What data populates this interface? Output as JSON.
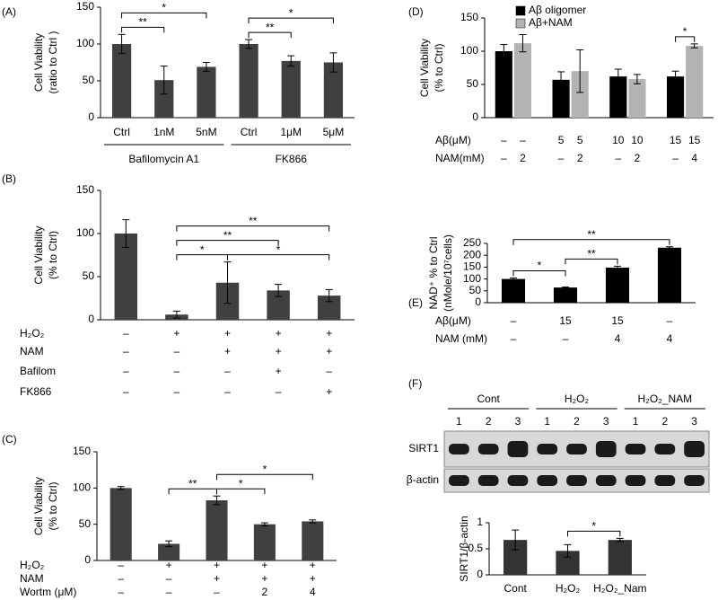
{
  "chart_data": [
    {
      "type": "bar",
      "label": "(A)",
      "ylabel": [
        "Cell Viability",
        "(ratio to Ctrl )"
      ],
      "categories": [
        "Ctrl",
        "1nM",
        "5nM",
        "Ctrl",
        "1μM",
        "5μM"
      ],
      "values": [
        100,
        51,
        69,
        100,
        77,
        75
      ],
      "errors": [
        13,
        19,
        6,
        6,
        7,
        13
      ],
      "color": "#404040",
      "ylim": [
        0,
        150
      ],
      "yticks": [
        0,
        50,
        100,
        150
      ],
      "groups": [
        {
          "label": "Bafilomycin A1",
          "from": 0,
          "to": 2
        },
        {
          "label": "FK866",
          "from": 3,
          "to": 5
        }
      ],
      "annotations": [
        {
          "text": "**",
          "from": 0,
          "to": 1
        },
        {
          "text": "*",
          "from": 0,
          "to": 2
        },
        {
          "text": "**",
          "from": 3,
          "to": 4
        },
        {
          "text": "*",
          "from": 3,
          "to": 5
        }
      ]
    },
    {
      "type": "bar",
      "label": "(B)",
      "ylabel": [
        "Cell Viability",
        "(% to Ctrl)"
      ],
      "values": [
        100,
        6,
        43,
        34,
        28
      ],
      "errors": [
        16,
        4,
        24,
        7,
        7
      ],
      "color": "#404040",
      "ylim": [
        0,
        150
      ],
      "yticks": [
        0,
        50,
        100,
        150
      ],
      "conditions": [
        {
          "label": "H₂O₂",
          "values": [
            "–",
            "+",
            "+",
            "+",
            "+"
          ]
        },
        {
          "label": "NAM",
          "values": [
            "–",
            "–",
            "+",
            "+",
            "+"
          ]
        },
        {
          "label": "Bafilom",
          "values": [
            "–",
            "–",
            "–",
            "+",
            "–"
          ]
        },
        {
          "label": "FK866",
          "values": [
            "–",
            "–",
            "–",
            "–",
            "+"
          ]
        }
      ],
      "annotations": [
        {
          "text": "*",
          "from": 1,
          "to": 2
        },
        {
          "text": "*",
          "from": 2,
          "to": 4
        },
        {
          "text": "**",
          "from": 1,
          "to": 3
        },
        {
          "text": "**",
          "from": 1,
          "to": 4
        }
      ]
    },
    {
      "type": "bar",
      "label": "(C)",
      "ylabel": [
        "Cell Viability",
        "(% to Ctrl)"
      ],
      "values": [
        100,
        23,
        83,
        50,
        54
      ],
      "errors": [
        2,
        4,
        6,
        2,
        2
      ],
      "color": "#404040",
      "ylim": [
        0,
        150
      ],
      "yticks": [
        0,
        50,
        100,
        150
      ],
      "conditions": [
        {
          "label": "H₂O₂",
          "values": [
            "–",
            "+",
            "+",
            "+",
            "+"
          ]
        },
        {
          "label": "NAM",
          "values": [
            "–",
            "–",
            "+",
            "+",
            "+"
          ]
        },
        {
          "label": "Wortm (μM)",
          "values": [
            "–",
            "–",
            "–",
            "2",
            "4"
          ]
        }
      ],
      "annotations": [
        {
          "text": "**",
          "from": 1,
          "to": 2
        },
        {
          "text": "*",
          "from": 2,
          "to": 3
        },
        {
          "text": "*",
          "from": 2,
          "to": 4
        }
      ]
    },
    {
      "type": "bar",
      "label": "(D)",
      "ylabel": [
        "Cell Viability",
        "(% to Ctrl)"
      ],
      "series": [
        {
          "name": "Aβ oligomer",
          "color": "#000000",
          "values": [
            100,
            57,
            62,
            62
          ],
          "errors": [
            10,
            12,
            11,
            8
          ]
        },
        {
          "name": "Aβ+NAM",
          "color": "#b3b3b3",
          "values": [
            112,
            70,
            58,
            108
          ],
          "errors": [
            13,
            32,
            7,
            3
          ]
        }
      ],
      "ylim": [
        0,
        150
      ],
      "yticks": [
        0,
        50,
        100,
        150
      ],
      "legend": "top",
      "conditions": [
        {
          "label": "Aβ(μM)",
          "values": [
            "–",
            "–",
            "5",
            "5",
            "10",
            "10",
            "15",
            "15"
          ]
        },
        {
          "label": "NAM(mM)",
          "values": [
            "–",
            "2",
            "–",
            "2",
            "–",
            "2",
            "–",
            "4"
          ]
        }
      ],
      "annotations": [
        {
          "text": "*",
          "from": 6,
          "to": 7
        }
      ]
    },
    {
      "type": "bar",
      "label": "(E)",
      "ylabel": [
        "NAD⁺ % to Ctrl",
        "(nMole/10⁷cells)"
      ],
      "values": [
        100,
        64,
        148,
        232
      ],
      "errors": [
        4,
        2,
        6,
        4
      ],
      "color": "#000000",
      "ylim": [
        0,
        250
      ],
      "yticks": [
        0,
        50,
        100,
        150,
        200,
        250
      ],
      "conditions": [
        {
          "label": "Aβ(μM)",
          "values": [
            "–",
            "15",
            "15",
            "–"
          ]
        },
        {
          "label": "NAM (mM)",
          "values": [
            "–",
            "–",
            "4",
            "4"
          ]
        }
      ],
      "annotations": [
        {
          "text": "*",
          "from": 0,
          "to": 1
        },
        {
          "text": "**",
          "from": 1,
          "to": 2
        },
        {
          "text": "**",
          "from": 0,
          "to": 3
        }
      ]
    },
    {
      "type": "bar",
      "label": "(F)",
      "ylabel": [
        "SIRT1/β-actin"
      ],
      "categories": [
        "Cont",
        "H₂O₂",
        "H₂O₂_Nam"
      ],
      "values": [
        0.67,
        0.46,
        0.67
      ],
      "errors": [
        0.19,
        0.12,
        0.03
      ],
      "color": "#333333",
      "ylim": [
        0,
        1
      ],
      "yticks": [
        0,
        0.5,
        1
      ],
      "annotations": [
        {
          "text": "*",
          "from": 1,
          "to": 2
        }
      ],
      "blot": {
        "groups": [
          "Cont",
          "H₂O₂",
          "H₂O₂_NAM"
        ],
        "lanes": [
          "1",
          "2",
          "3"
        ],
        "rows": [
          "SIRT1",
          "β-actin"
        ]
      }
    }
  ]
}
